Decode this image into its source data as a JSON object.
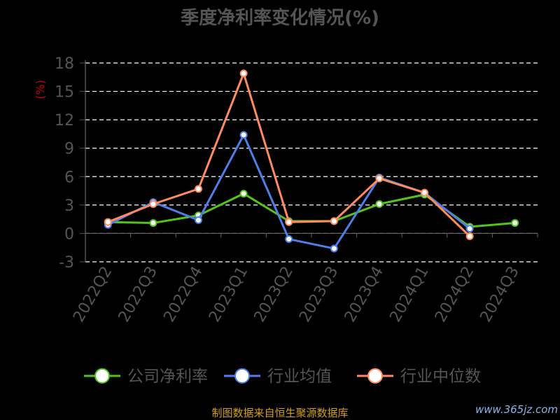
{
  "chart_data": {
    "type": "line",
    "title": "季度净利率变化情况(%)",
    "ylabel": "(%)",
    "categories": [
      "2022Q2",
      "2022Q3",
      "2022Q4",
      "2023Q1",
      "2023Q2",
      "2023Q3",
      "2023Q4",
      "2024Q1",
      "2024Q2",
      "2024Q3"
    ],
    "yticks": [
      18,
      15,
      12,
      9,
      6,
      3,
      0,
      -3
    ],
    "ylim": [
      -3,
      18
    ],
    "grid": true,
    "legend_position": "bottom",
    "series": [
      {
        "name": "公司净利率",
        "color": "#52c41a",
        "values": [
          1.2,
          1.1,
          1.9,
          4.2,
          1.3,
          1.3,
          3.1,
          4.1,
          0.7,
          1.1
        ]
      },
      {
        "name": "行业均值",
        "color": "#4e7ee8",
        "values": [
          0.9,
          3.3,
          1.4,
          10.4,
          -0.6,
          -1.6,
          5.9,
          4.3,
          0.5,
          null
        ]
      },
      {
        "name": "行业中位数",
        "color": "#ff8a5b",
        "values": [
          1.2,
          3.1,
          4.7,
          16.9,
          1.2,
          1.3,
          5.8,
          4.3,
          -0.3,
          null
        ]
      }
    ],
    "watermark": "www.365jz.com",
    "source": "制图数据来自恒生聚源数据库"
  }
}
